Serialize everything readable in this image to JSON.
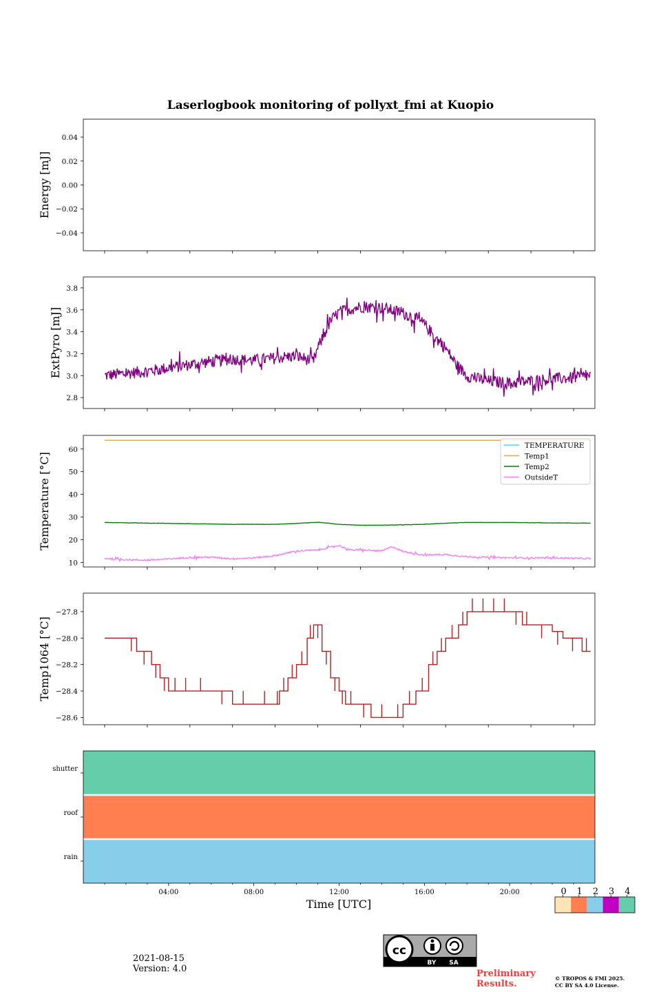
{
  "chart_data": {
    "title": "Laserlogbook monitoring of pollyxt_fmi at Kuopio",
    "xlabel": "Time [UTC]",
    "x_range_hours": [
      0,
      24
    ],
    "x_ticks": [
      "04:00",
      "08:00",
      "12:00",
      "16:00",
      "20:00"
    ],
    "panels": [
      {
        "type": "line",
        "ylabel": "Energy [mJ]",
        "ylim": [
          -0.055,
          0.055
        ],
        "yticks": [
          "0.04",
          "0.02",
          "0.00",
          "−0.02",
          "−0.04"
        ],
        "ytick_values": [
          0.04,
          0.02,
          0.0,
          -0.02,
          -0.04
        ],
        "series": []
      },
      {
        "type": "line",
        "ylabel": "ExtPyro [mJ]",
        "ylim": [
          2.7,
          3.9
        ],
        "yticks": [
          "3.8",
          "3.6",
          "3.4",
          "3.2",
          "3.0",
          "2.8"
        ],
        "ytick_values": [
          3.8,
          3.6,
          3.4,
          3.2,
          3.0,
          2.8
        ],
        "series": [
          {
            "name": "ExtPyro",
            "color": "#800080",
            "noise": 0.055,
            "x": [
              1.0,
              2.0,
              3.0,
              4.0,
              5.0,
              6.0,
              7.0,
              8.0,
              9.0,
              10.0,
              10.8,
              11.0,
              11.6,
              12.0,
              13.0,
              14.0,
              15.0,
              15.5,
              16.0,
              16.5,
              17.0,
              17.5,
              18.0,
              18.5,
              19.0,
              20.0,
              21.0,
              22.0,
              23.0,
              23.8
            ],
            "y": [
              3.0,
              3.02,
              3.04,
              3.07,
              3.1,
              3.13,
              3.15,
              3.14,
              3.16,
              3.18,
              3.13,
              3.25,
              3.5,
              3.58,
              3.63,
              3.62,
              3.57,
              3.53,
              3.47,
              3.35,
              3.25,
              3.1,
              3.0,
              2.97,
              2.95,
              2.93,
              2.95,
              2.97,
              2.98,
              3.0
            ]
          }
        ]
      },
      {
        "type": "line",
        "ylabel": "Temperature [°C]",
        "ylim": [
          8,
          66
        ],
        "yticks": [
          "60",
          "50",
          "40",
          "30",
          "20",
          "10"
        ],
        "ytick_values": [
          60,
          50,
          40,
          30,
          20,
          10
        ],
        "legend": [
          "TEMPERATURE",
          "Temp1",
          "Temp2",
          "OutsideT"
        ],
        "legend_position": "upper-right",
        "series": [
          {
            "name": "TEMPERATURE",
            "color": "#40e0d0",
            "x": [],
            "y": []
          },
          {
            "name": "Temp1",
            "color": "#ffa500",
            "noise": 0,
            "x": [
              1.0,
              23.8
            ],
            "y": [
              63.8,
              63.8
            ]
          },
          {
            "name": "Temp2",
            "color": "#008000",
            "noise": 0.06,
            "x": [
              1.0,
              4.0,
              7.0,
              9.0,
              10.0,
              11.0,
              12.0,
              13.0,
              14.0,
              15.0,
              16.0,
              17.0,
              18.0,
              20.0,
              22.0,
              23.8
            ],
            "y": [
              27.6,
              27.2,
              26.8,
              26.8,
              27.2,
              27.7,
              26.8,
              26.4,
              26.4,
              26.6,
              26.8,
              27.3,
              27.6,
              27.6,
              27.4,
              27.3
            ]
          },
          {
            "name": "OutsideT",
            "color": "#ee82ee",
            "noise": 0.35,
            "x": [
              1.0,
              2.0,
              3.0,
              4.0,
              5.0,
              6.0,
              7.0,
              8.0,
              9.0,
              10.0,
              11.0,
              12.0,
              12.5,
              13.0,
              14.0,
              14.5,
              15.0,
              16.0,
              17.0,
              18.0,
              20.0,
              22.0,
              23.8
            ],
            "y": [
              11.8,
              11.2,
              11.0,
              11.5,
              12.2,
              12.3,
              11.6,
              12.0,
              13.0,
              15.0,
              15.5,
              17.5,
              15.5,
              15.5,
              15.0,
              17.0,
              14.8,
              13.2,
              13.5,
              12.5,
              12.0,
              12.0,
              11.7
            ]
          }
        ]
      },
      {
        "type": "line",
        "ylabel": "Temp1064 [°C]",
        "ylim": [
          -28.655,
          -27.66
        ],
        "yticks": [
          "−27.8",
          "−28.0",
          "−28.2",
          "−28.4",
          "−28.6"
        ],
        "ytick_values": [
          -27.8,
          -28.0,
          -28.2,
          -28.4,
          -28.6
        ],
        "series": [
          {
            "name": "Temp1064",
            "color": "#b22222",
            "step": true,
            "x": [
              1.0,
              2.0,
              2.5,
              3.2,
              3.6,
              4.0,
              4.6,
              5.0,
              6.0,
              7.0,
              8.0,
              9.0,
              9.2,
              9.6,
              10.0,
              10.5,
              10.8,
              11.2,
              11.6,
              12.0,
              12.3,
              12.8,
              13.5,
              14.5,
              15.0,
              15.6,
              16.2,
              16.6,
              17.0,
              17.6,
              18.0,
              18.5,
              19.0,
              19.5,
              20.0,
              20.6,
              21.0,
              22.0,
              22.5,
              23.4,
              23.8
            ],
            "y": [
              -28.0,
              -28.0,
              -28.1,
              -28.2,
              -28.3,
              -28.4,
              -28.4,
              -28.4,
              -28.4,
              -28.5,
              -28.5,
              -28.5,
              -28.4,
              -28.3,
              -28.2,
              -28.0,
              -27.9,
              -28.1,
              -28.3,
              -28.4,
              -28.5,
              -28.5,
              -28.6,
              -28.6,
              -28.5,
              -28.4,
              -28.2,
              -28.1,
              -28.0,
              -27.9,
              -27.8,
              -27.8,
              -27.8,
              -27.8,
              -27.8,
              -27.9,
              -27.9,
              -27.95,
              -28.0,
              -28.1,
              -28.1
            ]
          }
        ]
      },
      {
        "type": "heatmap",
        "rows": [
          "shutter",
          "roof",
          "rain"
        ],
        "row_status": [
          4,
          1,
          2
        ],
        "x_range_hours": [
          0,
          24
        ]
      }
    ],
    "colorbar": {
      "ticks": [
        "0",
        "1",
        "2",
        "3",
        "4"
      ],
      "colors": [
        "#ffe4b5",
        "#ff7f50",
        "#87ceeb",
        "#c000c0",
        "#66cdaa"
      ]
    }
  },
  "footer": {
    "date": "2021-08-15",
    "version": "Version: 4.0",
    "preliminary": [
      "Preliminary",
      "Results."
    ],
    "copyright": [
      "© TROPOS & FMI 2025.",
      "CC BY SA 4.0 License."
    ],
    "license_badge": {
      "icon": "cc-by-sa-icon",
      "labels": [
        "BY",
        "SA"
      ]
    }
  }
}
